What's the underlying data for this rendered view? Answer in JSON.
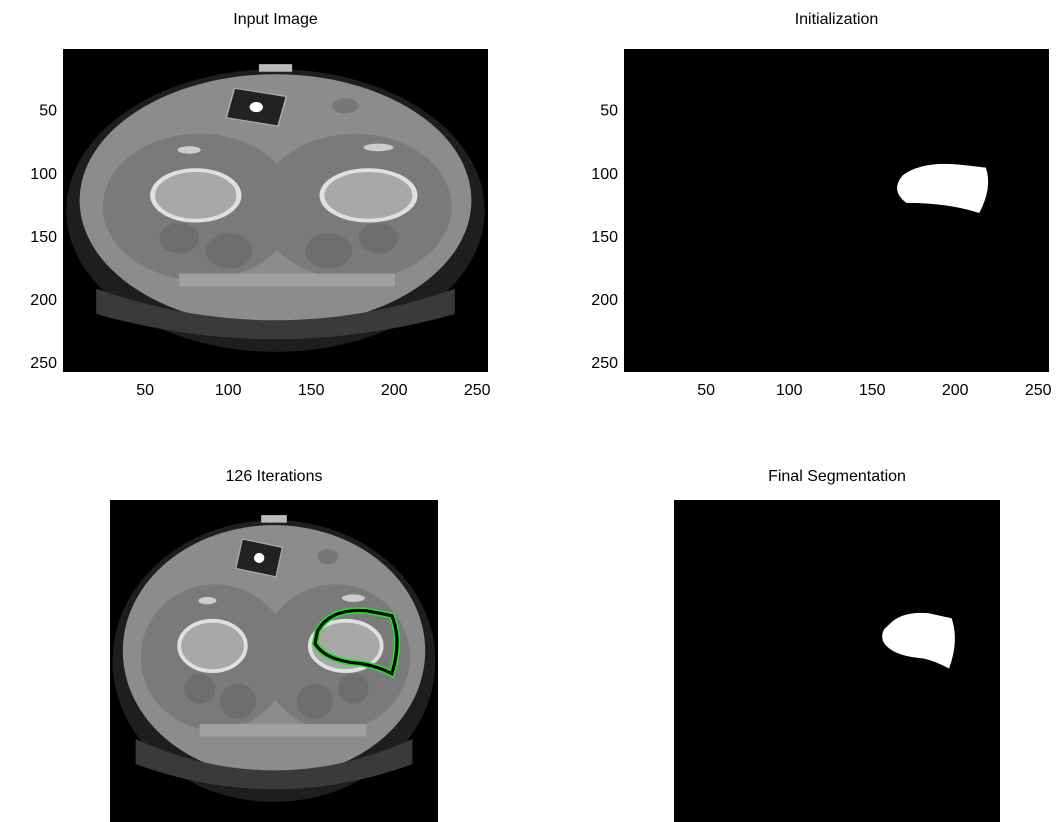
{
  "panels": [
    {
      "title": "Input Image",
      "xlim": [
        0.5,
        256.5
      ],
      "ylim": [
        0.5,
        256.5
      ],
      "xticks": [
        50,
        100,
        150,
        200,
        250
      ],
      "yticks": [
        50,
        100,
        150,
        200,
        250
      ]
    },
    {
      "title": "Initialization",
      "xlim": [
        0.5,
        256.5
      ],
      "ylim": [
        0.5,
        256.5
      ],
      "xticks": [
        50,
        100,
        150,
        200,
        250
      ],
      "yticks": [
        50,
        100,
        150,
        200,
        250
      ]
    },
    {
      "title": "126 Iterations"
    },
    {
      "title": "Final Segmentation"
    }
  ]
}
